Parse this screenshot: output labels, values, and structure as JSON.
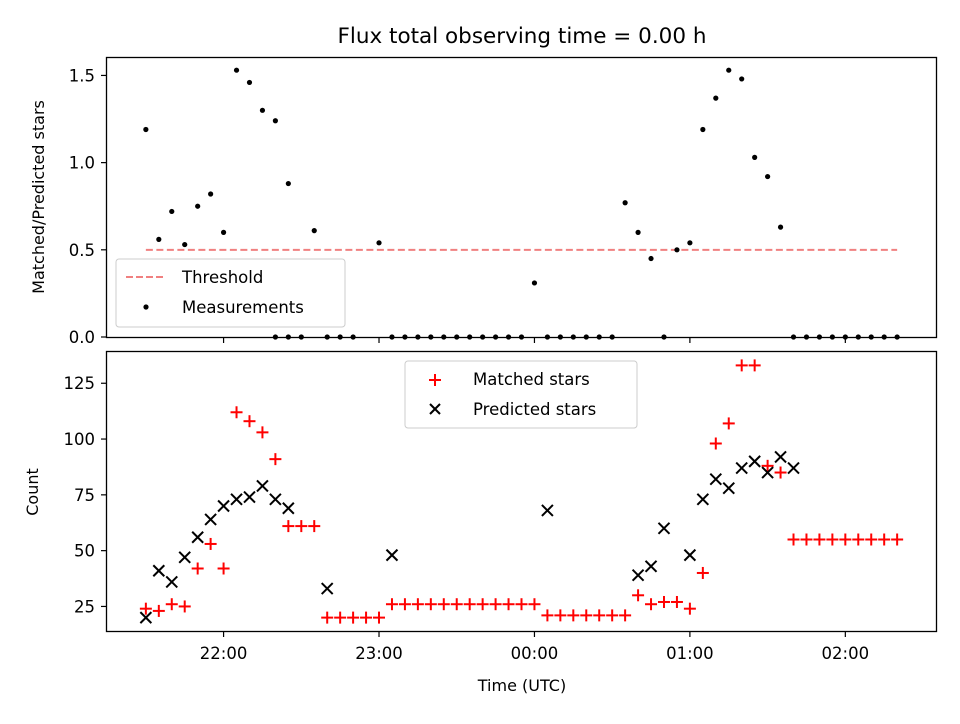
{
  "figure": {
    "title": "Flux total observing time = 0.00 h",
    "xlabel": "Time (UTC)"
  },
  "chart_data": [
    {
      "type": "scatter",
      "ylabel": "Matched/Predicted stars",
      "ylim": [
        0,
        1.6
      ],
      "yticks": [
        0.0,
        0.5,
        1.0,
        1.5
      ],
      "ytick_labels": [
        "0.0",
        "0.5",
        "1.0",
        "1.5"
      ],
      "grid": false,
      "legend": "lower-left",
      "threshold": {
        "name": "Threshold",
        "value": 0.5,
        "x_start": "21:30",
        "x_end": "02:20",
        "color": "#f08080"
      },
      "series": [
        {
          "name": "Measurements",
          "marker": "dot",
          "color": "#000000",
          "x": [
            "21:30",
            "21:35",
            "21:40",
            "21:45",
            "21:50",
            "21:55",
            "22:00",
            "22:05",
            "22:10",
            "22:15",
            "22:20",
            "22:25",
            "22:30",
            "22:35",
            "22:45",
            "22:50",
            "23:00",
            "23:05",
            "23:10",
            "23:15",
            "23:20",
            "23:25",
            "23:30",
            "23:35",
            "23:40",
            "23:45",
            "23:50",
            "23:55",
            "00:00",
            "00:05",
            "00:10",
            "00:15",
            "00:20",
            "00:25",
            "00:30",
            "00:35",
            "00:40",
            "00:45",
            "00:50",
            "00:55",
            "01:00",
            "01:05",
            "01:10",
            "01:15",
            "01:20",
            "01:25",
            "01:30",
            "01:35",
            "01:40",
            "01:45",
            "01:50",
            "01:55",
            "02:00",
            "02:05",
            "02:10",
            "02:15",
            "02:20"
          ],
          "y": [
            1.19,
            0.56,
            0.72,
            0.53,
            0.75,
            0.82,
            0.6,
            1.53,
            1.46,
            1.3,
            1.24,
            0.88,
            0.0,
            0.61,
            0.0,
            0.0,
            0.54,
            0.0,
            0.0,
            0.0,
            0.0,
            0.0,
            0.0,
            0.0,
            0.0,
            0.0,
            0.0,
            0.0,
            0.31,
            0.0,
            0.0,
            0.0,
            0.0,
            0.0,
            0.0,
            0.77,
            0.6,
            0.45,
            0.0,
            0.5,
            0.54,
            1.19,
            1.37,
            1.53,
            1.48,
            1.03,
            0.92,
            0.63,
            0.0,
            0.0,
            0.0,
            0.0,
            0.0,
            0.0,
            0.0,
            0.0,
            0.0
          ]
        },
        {
          "name": "",
          "marker": "dot",
          "color": "#000000",
          "x": [
            "22:40",
            "22:20",
            "22:25"
          ],
          "y": [
            0.0,
            0.0,
            0.0
          ]
        }
      ],
      "tick_marks_only": true
    },
    {
      "type": "scatter",
      "ylabel": "Count",
      "ylim": [
        14,
        139
      ],
      "yticks": [
        25,
        50,
        75,
        100,
        125
      ],
      "ytick_labels": [
        "25",
        "50",
        "75",
        "100",
        "125"
      ],
      "xlim": [
        "21:15",
        "02:35"
      ],
      "xticks": [
        "22:00",
        "23:00",
        "00:00",
        "01:00",
        "02:00"
      ],
      "xtick_labels": [
        "22:00",
        "23:00",
        "00:00",
        "01:00",
        "02:00"
      ],
      "grid": false,
      "legend": "upper-center",
      "series": [
        {
          "name": "Matched stars",
          "marker": "plus",
          "color": "#ff0000",
          "x": [
            "21:30",
            "21:35",
            "21:40",
            "21:45",
            "21:50",
            "21:55",
            "22:00",
            "22:05",
            "22:10",
            "22:15",
            "22:20",
            "22:25",
            "22:30",
            "22:35",
            "22:40",
            "22:45",
            "22:50",
            "22:55",
            "23:00",
            "23:05",
            "23:10",
            "23:15",
            "23:20",
            "23:25",
            "23:30",
            "23:35",
            "23:40",
            "23:45",
            "23:50",
            "23:55",
            "00:00",
            "00:05",
            "00:10",
            "00:15",
            "00:20",
            "00:25",
            "00:30",
            "00:35",
            "00:40",
            "00:45",
            "00:50",
            "00:55",
            "01:00",
            "01:05",
            "01:10",
            "01:15",
            "01:20",
            "01:25",
            "01:30",
            "01:35",
            "01:40",
            "01:45",
            "01:50",
            "01:55",
            "02:00",
            "02:05",
            "02:10",
            "02:15",
            "02:20"
          ],
          "y": [
            24,
            23,
            26,
            25,
            42,
            53,
            42,
            112,
            108,
            103,
            91,
            61,
            61,
            61,
            20,
            20,
            20,
            20,
            20,
            26,
            26,
            26,
            26,
            26,
            26,
            26,
            26,
            26,
            26,
            26,
            26,
            21,
            21,
            21,
            21,
            21,
            21,
            21,
            30,
            26,
            27,
            27,
            24,
            40,
            98,
            107,
            133,
            133,
            88,
            85,
            55,
            55,
            55,
            55,
            55,
            55,
            55,
            55,
            55
          ]
        },
        {
          "name": "Predicted stars",
          "marker": "x",
          "color": "#000000",
          "x": [
            "21:30",
            "21:35",
            "21:40",
            "21:45",
            "21:50",
            "21:55",
            "22:00",
            "22:05",
            "22:10",
            "22:15",
            "22:20",
            "22:25",
            "22:40",
            "23:05",
            "00:05",
            "00:40",
            "00:45",
            "00:50",
            "01:00",
            "01:05",
            "01:10",
            "01:15",
            "01:20",
            "01:25",
            "01:30",
            "01:35",
            "01:40"
          ],
          "y": [
            20,
            41,
            36,
            47,
            56,
            64,
            70,
            73,
            74,
            79,
            73,
            69,
            33,
            48,
            68,
            39,
            43,
            60,
            48,
            73,
            82,
            78,
            87,
            90,
            85,
            92,
            87
          ]
        }
      ]
    }
  ]
}
